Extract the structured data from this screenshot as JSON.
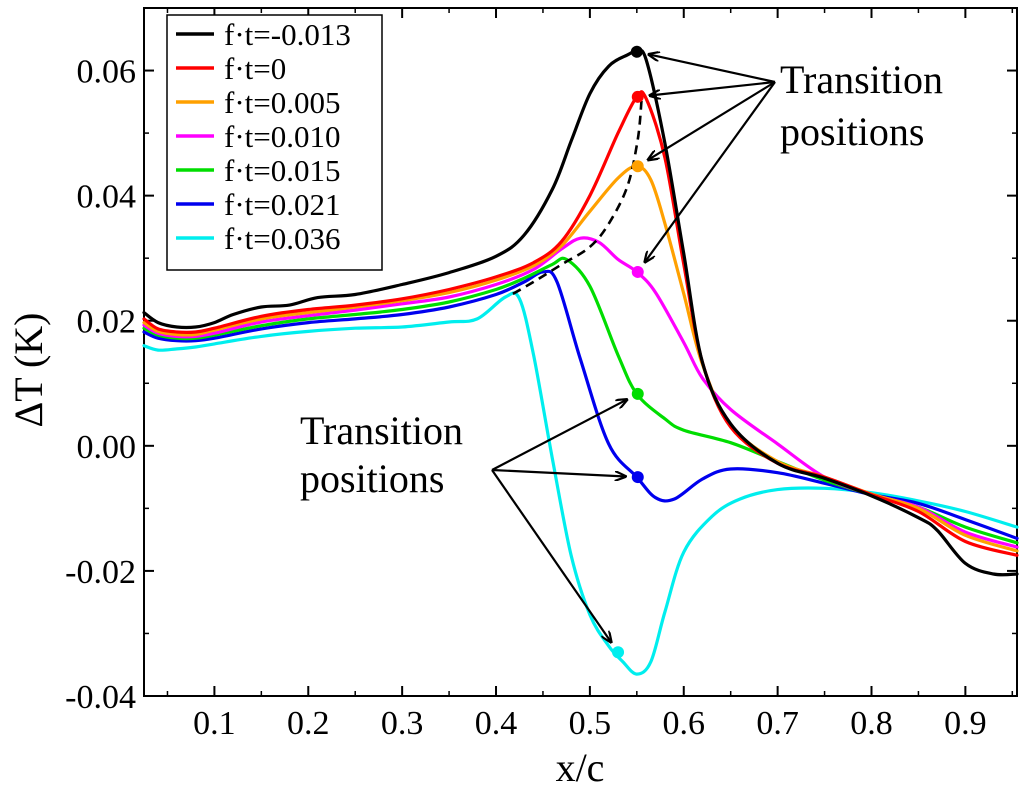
{
  "chart_data": {
    "type": "line",
    "title": "",
    "xlabel": "x/c",
    "ylabel": "ΔT (K)",
    "xlim": [
      0.025,
      0.955
    ],
    "ylim": [
      -0.04,
      0.07
    ],
    "xticks": [
      0.1,
      0.2,
      0.3,
      0.4,
      0.5,
      0.6,
      0.7,
      0.8,
      0.9
    ],
    "xtick_labels": [
      "0.1",
      "0.2",
      "0.3",
      "0.4",
      "0.5",
      "0.6",
      "0.7",
      "0.8",
      "0.9"
    ],
    "yticks": [
      -0.04,
      -0.02,
      0.0,
      0.02,
      0.04,
      0.06
    ],
    "ytick_labels": [
      "-0.04",
      "-0.02",
      "0.00",
      "0.02",
      "0.04",
      "0.06"
    ],
    "grid": false,
    "legend_position": "top-left",
    "series": [
      {
        "name": "f·t=-0.013",
        "color": "#000000",
        "points": [
          [
            0.025,
            0.0213
          ],
          [
            0.04,
            0.0197
          ],
          [
            0.06,
            0.019
          ],
          [
            0.08,
            0.019
          ],
          [
            0.1,
            0.0197
          ],
          [
            0.12,
            0.021
          ],
          [
            0.15,
            0.0222
          ],
          [
            0.18,
            0.0225
          ],
          [
            0.21,
            0.0237
          ],
          [
            0.25,
            0.0242
          ],
          [
            0.3,
            0.0258
          ],
          [
            0.35,
            0.0277
          ],
          [
            0.4,
            0.0303
          ],
          [
            0.43,
            0.0337
          ],
          [
            0.46,
            0.041
          ],
          [
            0.48,
            0.0487
          ],
          [
            0.5,
            0.0563
          ],
          [
            0.52,
            0.0607
          ],
          [
            0.54,
            0.0625
          ],
          [
            0.55,
            0.063
          ],
          [
            0.56,
            0.0617
          ],
          [
            0.58,
            0.0483
          ],
          [
            0.6,
            0.0307
          ],
          [
            0.62,
            0.0133
          ],
          [
            0.65,
            0.0035
          ],
          [
            0.7,
            -0.0028
          ],
          [
            0.75,
            -0.0052
          ],
          [
            0.8,
            -0.008
          ],
          [
            0.85,
            -0.0115
          ],
          [
            0.87,
            -0.0135
          ],
          [
            0.9,
            -0.0188
          ],
          [
            0.93,
            -0.0205
          ],
          [
            0.955,
            -0.0205
          ]
        ],
        "marker": [
          0.55,
          0.063
        ]
      },
      {
        "name": "f·t=0",
        "color": "#ff0000",
        "points": [
          [
            0.025,
            0.0203
          ],
          [
            0.04,
            0.0187
          ],
          [
            0.06,
            0.0182
          ],
          [
            0.08,
            0.0182
          ],
          [
            0.1,
            0.0188
          ],
          [
            0.15,
            0.0207
          ],
          [
            0.2,
            0.0218
          ],
          [
            0.25,
            0.0225
          ],
          [
            0.3,
            0.0235
          ],
          [
            0.35,
            0.025
          ],
          [
            0.4,
            0.027
          ],
          [
            0.44,
            0.0293
          ],
          [
            0.47,
            0.0327
          ],
          [
            0.5,
            0.04
          ],
          [
            0.53,
            0.05
          ],
          [
            0.55,
            0.0558
          ],
          [
            0.56,
            0.0555
          ],
          [
            0.58,
            0.046
          ],
          [
            0.6,
            0.029
          ],
          [
            0.62,
            0.0133
          ],
          [
            0.65,
            0.003
          ],
          [
            0.7,
            -0.0028
          ],
          [
            0.75,
            -0.005
          ],
          [
            0.8,
            -0.0078
          ],
          [
            0.85,
            -0.0105
          ],
          [
            0.9,
            -0.0153
          ],
          [
            0.955,
            -0.0175
          ]
        ],
        "marker": [
          0.551,
          0.0558
        ]
      },
      {
        "name": "f·t=0.005",
        "color": "#ffa000",
        "points": [
          [
            0.025,
            0.0197
          ],
          [
            0.04,
            0.0183
          ],
          [
            0.06,
            0.0178
          ],
          [
            0.08,
            0.0178
          ],
          [
            0.1,
            0.0185
          ],
          [
            0.15,
            0.0203
          ],
          [
            0.2,
            0.0213
          ],
          [
            0.25,
            0.0222
          ],
          [
            0.3,
            0.0232
          ],
          [
            0.35,
            0.0245
          ],
          [
            0.4,
            0.0265
          ],
          [
            0.44,
            0.0288
          ],
          [
            0.47,
            0.032
          ],
          [
            0.5,
            0.0375
          ],
          [
            0.53,
            0.0428
          ],
          [
            0.55,
            0.0447
          ],
          [
            0.565,
            0.0425
          ],
          [
            0.58,
            0.0355
          ],
          [
            0.6,
            0.0243
          ],
          [
            0.62,
            0.013
          ],
          [
            0.65,
            0.0033
          ],
          [
            0.7,
            -0.0025
          ],
          [
            0.75,
            -0.005
          ],
          [
            0.8,
            -0.0077
          ],
          [
            0.85,
            -0.01
          ],
          [
            0.9,
            -0.0143
          ],
          [
            0.955,
            -0.0168
          ]
        ],
        "marker": [
          0.551,
          0.0447
        ]
      },
      {
        "name": "f·t=0.010",
        "color": "#ff00ff",
        "points": [
          [
            0.025,
            0.0193
          ],
          [
            0.04,
            0.018
          ],
          [
            0.06,
            0.0175
          ],
          [
            0.08,
            0.0175
          ],
          [
            0.1,
            0.018
          ],
          [
            0.15,
            0.0198
          ],
          [
            0.2,
            0.0208
          ],
          [
            0.25,
            0.0217
          ],
          [
            0.3,
            0.0227
          ],
          [
            0.35,
            0.0238
          ],
          [
            0.4,
            0.0258
          ],
          [
            0.44,
            0.0282
          ],
          [
            0.47,
            0.0315
          ],
          [
            0.49,
            0.0332
          ],
          [
            0.51,
            0.0325
          ],
          [
            0.53,
            0.0298
          ],
          [
            0.55,
            0.0278
          ],
          [
            0.57,
            0.0245
          ],
          [
            0.6,
            0.0165
          ],
          [
            0.62,
            0.0108
          ],
          [
            0.65,
            0.0058
          ],
          [
            0.7,
            0.0003
          ],
          [
            0.75,
            -0.005
          ],
          [
            0.8,
            -0.0078
          ],
          [
            0.85,
            -0.0098
          ],
          [
            0.9,
            -0.0138
          ],
          [
            0.955,
            -0.0162
          ]
        ],
        "marker": [
          0.551,
          0.0278
        ]
      },
      {
        "name": "f·t=0.015",
        "color": "#00dd00",
        "points": [
          [
            0.025,
            0.0188
          ],
          [
            0.04,
            0.0177
          ],
          [
            0.06,
            0.0172
          ],
          [
            0.08,
            0.0172
          ],
          [
            0.1,
            0.0177
          ],
          [
            0.15,
            0.0192
          ],
          [
            0.2,
            0.0203
          ],
          [
            0.25,
            0.021
          ],
          [
            0.3,
            0.0218
          ],
          [
            0.35,
            0.023
          ],
          [
            0.4,
            0.025
          ],
          [
            0.43,
            0.0268
          ],
          [
            0.46,
            0.029
          ],
          [
            0.475,
            0.0298
          ],
          [
            0.5,
            0.0255
          ],
          [
            0.53,
            0.0145
          ],
          [
            0.55,
            0.0083
          ],
          [
            0.58,
            0.0043
          ],
          [
            0.6,
            0.0025
          ],
          [
            0.65,
            0.0005
          ],
          [
            0.7,
            -0.0025
          ],
          [
            0.75,
            -0.0055
          ],
          [
            0.8,
            -0.0078
          ],
          [
            0.85,
            -0.0098
          ],
          [
            0.9,
            -0.013
          ],
          [
            0.955,
            -0.0155
          ]
        ],
        "marker": [
          0.551,
          0.0083
        ]
      },
      {
        "name": "f·t=0.021",
        "color": "#0000ee",
        "points": [
          [
            0.025,
            0.0182
          ],
          [
            0.04,
            0.0172
          ],
          [
            0.06,
            0.0168
          ],
          [
            0.08,
            0.0168
          ],
          [
            0.1,
            0.0172
          ],
          [
            0.15,
            0.0187
          ],
          [
            0.2,
            0.0197
          ],
          [
            0.25,
            0.0203
          ],
          [
            0.3,
            0.021
          ],
          [
            0.35,
            0.0222
          ],
          [
            0.4,
            0.0242
          ],
          [
            0.43,
            0.0262
          ],
          [
            0.45,
            0.0278
          ],
          [
            0.465,
            0.0262
          ],
          [
            0.49,
            0.0138
          ],
          [
            0.52,
            0.0003
          ],
          [
            0.55,
            -0.005
          ],
          [
            0.57,
            -0.0083
          ],
          [
            0.59,
            -0.0085
          ],
          [
            0.62,
            -0.0053
          ],
          [
            0.65,
            -0.0037
          ],
          [
            0.7,
            -0.0043
          ],
          [
            0.75,
            -0.006
          ],
          [
            0.8,
            -0.0078
          ],
          [
            0.85,
            -0.0092
          ],
          [
            0.9,
            -0.0118
          ],
          [
            0.955,
            -0.0148
          ]
        ],
        "marker": [
          0.551,
          -0.005
        ]
      },
      {
        "name": "f·t=0.036",
        "color": "#00eeee",
        "points": [
          [
            0.025,
            0.016
          ],
          [
            0.04,
            0.0153
          ],
          [
            0.06,
            0.0155
          ],
          [
            0.08,
            0.0158
          ],
          [
            0.1,
            0.0163
          ],
          [
            0.15,
            0.0175
          ],
          [
            0.2,
            0.0183
          ],
          [
            0.25,
            0.0188
          ],
          [
            0.3,
            0.019
          ],
          [
            0.35,
            0.0198
          ],
          [
            0.38,
            0.0203
          ],
          [
            0.41,
            0.0238
          ],
          [
            0.425,
            0.0235
          ],
          [
            0.44,
            0.0145
          ],
          [
            0.46,
            -0.002
          ],
          [
            0.48,
            -0.0175
          ],
          [
            0.5,
            -0.027
          ],
          [
            0.52,
            -0.032
          ],
          [
            0.535,
            -0.0345
          ],
          [
            0.55,
            -0.0365
          ],
          [
            0.565,
            -0.0345
          ],
          [
            0.58,
            -0.0265
          ],
          [
            0.6,
            -0.017
          ],
          [
            0.63,
            -0.0113
          ],
          [
            0.66,
            -0.0085
          ],
          [
            0.7,
            -0.007
          ],
          [
            0.75,
            -0.0068
          ],
          [
            0.8,
            -0.0075
          ],
          [
            0.85,
            -0.0088
          ],
          [
            0.9,
            -0.0105
          ],
          [
            0.955,
            -0.013
          ]
        ],
        "marker": [
          0.53,
          -0.033
        ]
      }
    ],
    "transition_line": {
      "style": "dashed",
      "color": "#000000",
      "points": [
        [
          0.418,
          0.0243
        ],
        [
          0.44,
          0.0262
        ],
        [
          0.47,
          0.029
        ],
        [
          0.5,
          0.0318
        ],
        [
          0.52,
          0.0355
        ],
        [
          0.54,
          0.0415
        ],
        [
          0.551,
          0.049
        ],
        [
          0.555,
          0.0552
        ]
      ]
    },
    "annotations": [
      {
        "id": "upper",
        "lines": [
          "Transition",
          "positions"
        ],
        "arrows_to": [
          [
            0.55,
            0.063
          ],
          [
            0.551,
            0.0558
          ],
          [
            0.551,
            0.0447
          ],
          [
            0.551,
            0.0278
          ]
        ]
      },
      {
        "id": "lower",
        "lines": [
          "Transition",
          "positions"
        ],
        "arrows_to": [
          [
            0.551,
            0.0083
          ],
          [
            0.551,
            -0.005
          ],
          [
            0.53,
            -0.033
          ]
        ]
      }
    ]
  }
}
